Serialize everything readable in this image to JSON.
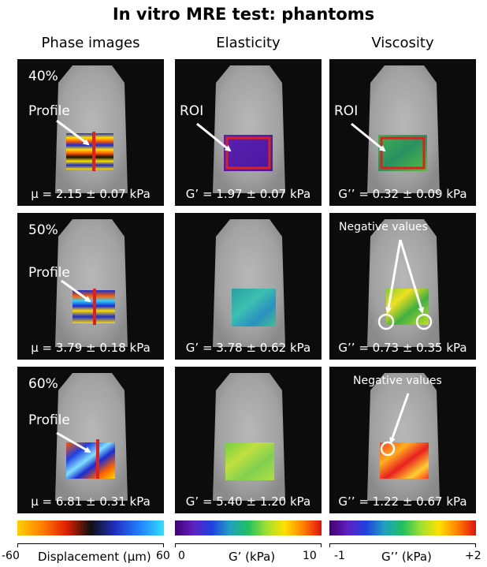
{
  "title": "In vitro MRE test: phantoms",
  "columns": [
    "Phase images",
    "Elasticity",
    "Viscosity"
  ],
  "rows": [
    {
      "concentration": "40%",
      "phase": {
        "label": "Profile",
        "value": "μ = 2.15 ± 0.07 kPa"
      },
      "elasticity": {
        "label": "ROI",
        "value": "G’ = 1.97 ± 0.07 kPa"
      },
      "viscosity": {
        "label": "ROI",
        "value": "G’’ = 0.32 ± 0.09 kPa"
      }
    },
    {
      "concentration": "50%",
      "phase": {
        "label": "Profile",
        "value": "μ = 3.79 ± 0.18 kPa"
      },
      "elasticity": {
        "label": "",
        "value": "G’ = 3.78 ± 0.62 kPa"
      },
      "viscosity": {
        "label": "Negative values",
        "value": "G’’ = 0.73 ± 0.35 kPa"
      }
    },
    {
      "concentration": "60%",
      "phase": {
        "label": "Profile",
        "value": "μ = 6.81 ± 0.31 kPa"
      },
      "elasticity": {
        "label": "",
        "value": "G’ = 5.40 ± 1.20 kPa"
      },
      "viscosity": {
        "label": "Negative values",
        "value": "G’’ = 1.22 ± 0.67 kPa"
      }
    }
  ],
  "colorbars": [
    {
      "min": "-60",
      "label": "Displacement (μm)",
      "max": "60"
    },
    {
      "min": "0",
      "label": "G’ (kPa)",
      "max": "10"
    },
    {
      "min": "-1",
      "label": "G’’ (kPa)",
      "max": "+2"
    }
  ],
  "colors": {
    "roi_box": "#e0201e",
    "profile_line": "#e0201e",
    "arrow": "#ffffff"
  }
}
